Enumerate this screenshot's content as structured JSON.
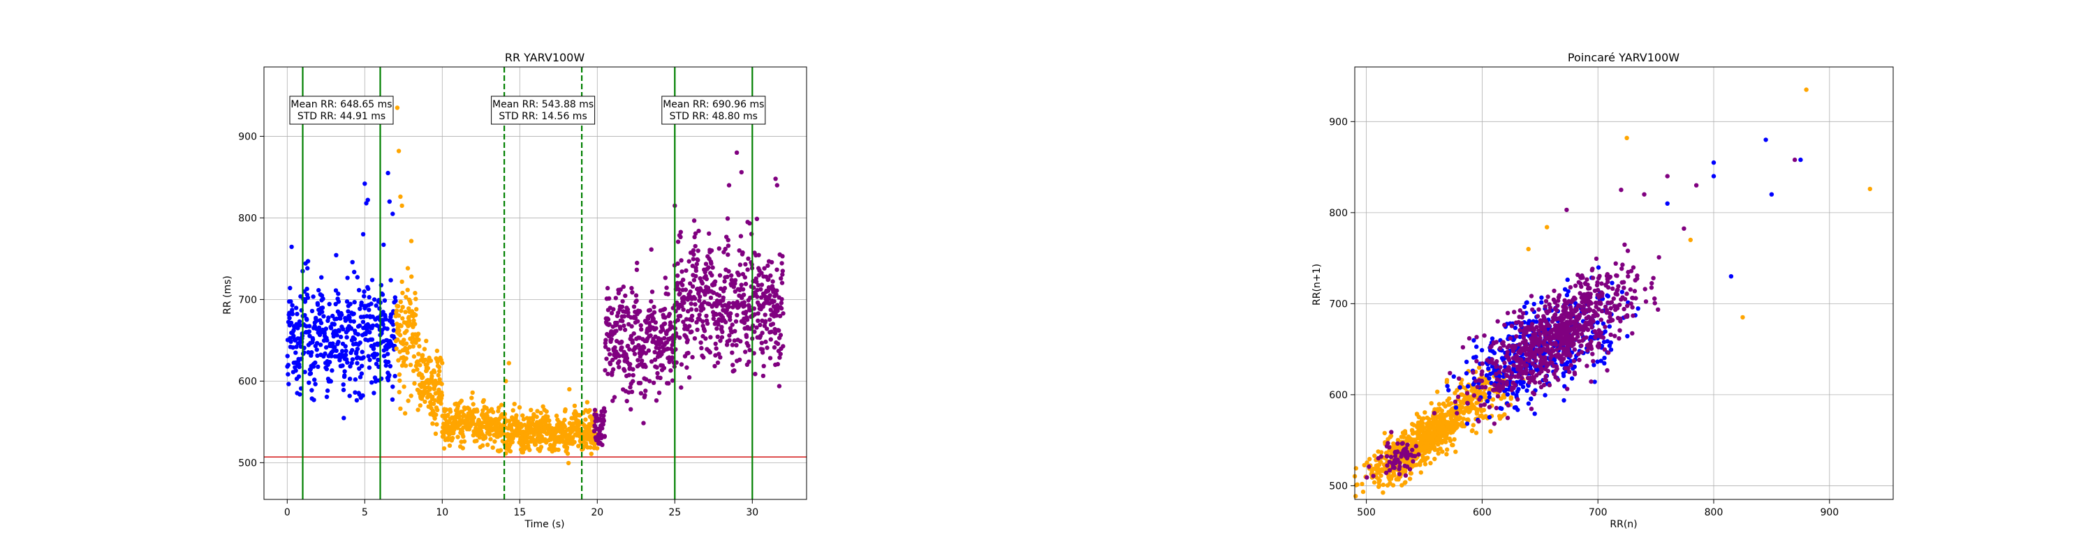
{
  "chart_data": [
    {
      "type": "scatter",
      "title": "RR YARV100W",
      "xlabel": "Time (s)",
      "ylabel": "RR (ms)",
      "xlim": [
        -1.5,
        33.5
      ],
      "ylim": [
        455,
        985
      ],
      "xticks": [
        0,
        5,
        10,
        15,
        20,
        25,
        30
      ],
      "yticks": [
        500,
        600,
        700,
        800,
        900
      ],
      "grid": true,
      "hline": {
        "y": 507,
        "color": "#d62728"
      },
      "vlines": [
        {
          "x": 1.0,
          "style": "solid",
          "color": "#008000"
        },
        {
          "x": 6.0,
          "style": "solid",
          "color": "#008000"
        },
        {
          "x": 14.0,
          "style": "dashed",
          "color": "#008000"
        },
        {
          "x": 19.0,
          "style": "dashed",
          "color": "#008000"
        },
        {
          "x": 25.0,
          "style": "solid",
          "color": "#008000"
        },
        {
          "x": 30.0,
          "style": "solid",
          "color": "#008000"
        }
      ],
      "annotations": [
        {
          "x": 3.5,
          "y": 932,
          "lines": [
            "Mean RR: 648.65 ms",
            "STD RR: 44.91 ms"
          ]
        },
        {
          "x": 16.5,
          "y": 932,
          "lines": [
            "Mean RR: 543.88 ms",
            "STD RR: 14.56 ms"
          ]
        },
        {
          "x": 27.5,
          "y": 932,
          "lines": [
            "Mean RR: 690.96 ms",
            "STD RR: 48.80 ms"
          ]
        }
      ],
      "series": [
        {
          "color": "#0000ff",
          "segments": [
            {
              "t0": 0.0,
              "t1": 7.0,
              "n": 480,
              "mean": 652,
              "std": 38
            }
          ],
          "outliers": [
            [
              5.0,
              842
            ],
            [
              5.1,
              818
            ],
            [
              5.2,
              822
            ],
            [
              6.5,
              855
            ],
            [
              6.6,
              820
            ],
            [
              6.8,
              805
            ],
            [
              4.9,
              780
            ]
          ]
        },
        {
          "color": "#ffa500",
          "segments": [
            {
              "t0": 7.0,
              "t1": 8.5,
              "n": 110,
              "mean": 655,
              "std": 40
            },
            {
              "t0": 8.5,
              "t1": 10.0,
              "n": 120,
              "mean": 590,
              "std": 25
            },
            {
              "t0": 10.0,
              "t1": 13.5,
              "n": 260,
              "mean": 548,
              "std": 14
            },
            {
              "t0": 13.5,
              "t1": 20.0,
              "n": 520,
              "mean": 538,
              "std": 14
            }
          ],
          "outliers": [
            [
              7.1,
              935
            ],
            [
              7.2,
              882
            ],
            [
              7.3,
              826
            ],
            [
              7.4,
              815
            ],
            [
              14.3,
              622
            ],
            [
              14.1,
              600
            ],
            [
              18.2,
              590
            ]
          ]
        },
        {
          "color": "#800080",
          "segments": [
            {
              "t0": 19.8,
              "t1": 20.5,
              "n": 50,
              "mean": 545,
              "std": 15
            },
            {
              "t0": 20.5,
              "t1": 25.0,
              "n": 330,
              "mean": 648,
              "std": 35
            },
            {
              "t0": 25.0,
              "t1": 32.0,
              "n": 520,
              "mean": 695,
              "std": 42
            }
          ],
          "outliers": [
            [
              28.5,
              840
            ],
            [
              29.0,
              880
            ],
            [
              29.3,
              856
            ],
            [
              31.5,
              848
            ],
            [
              31.6,
              840
            ],
            [
              25.0,
              815
            ],
            [
              29.7,
              795
            ]
          ]
        }
      ]
    },
    {
      "type": "scatter",
      "title": "Poincaré YARV100W",
      "xlabel": "RR(n)",
      "ylabel": "RR(n+1)",
      "xlim": [
        490,
        955
      ],
      "ylim": [
        485,
        960
      ],
      "xticks": [
        500,
        600,
        700,
        800,
        900
      ],
      "yticks": [
        500,
        600,
        700,
        800,
        900
      ],
      "grid": true,
      "series": [
        {
          "color": "#ffa500",
          "clouds": [
            {
              "cx": 545,
              "n": 700,
              "spread_along": 28,
              "spread_perp": 9
            },
            {
              "cx": 590,
              "n": 200,
              "spread_along": 22,
              "spread_perp": 12
            }
          ],
          "outliers": [
            [
              725,
              882
            ],
            [
              880,
              935
            ],
            [
              935,
              826
            ],
            [
              825,
              685
            ],
            [
              780,
              770
            ],
            [
              656,
              784
            ],
            [
              640,
              760
            ]
          ]
        },
        {
          "color": "#0000ff",
          "clouds": [
            {
              "cx": 650,
              "n": 420,
              "spread_along": 40,
              "spread_perp": 20
            }
          ],
          "outliers": [
            [
              800,
              855
            ],
            [
              845,
              880
            ],
            [
              875,
              858
            ],
            [
              850,
              820
            ],
            [
              800,
              840
            ],
            [
              815,
              730
            ],
            [
              760,
              810
            ]
          ]
        },
        {
          "color": "#800080",
          "clouds": [
            {
              "cx": 665,
              "n": 800,
              "spread_along": 45,
              "spread_perp": 17
            },
            {
              "cx": 530,
              "n": 60,
              "spread_along": 12,
              "spread_perp": 8
            }
          ],
          "outliers": [
            [
              720,
              825
            ],
            [
              760,
              840
            ],
            [
              785,
              830
            ],
            [
              870,
              858
            ],
            [
              673,
              803
            ],
            [
              740,
              820
            ]
          ]
        }
      ]
    }
  ]
}
